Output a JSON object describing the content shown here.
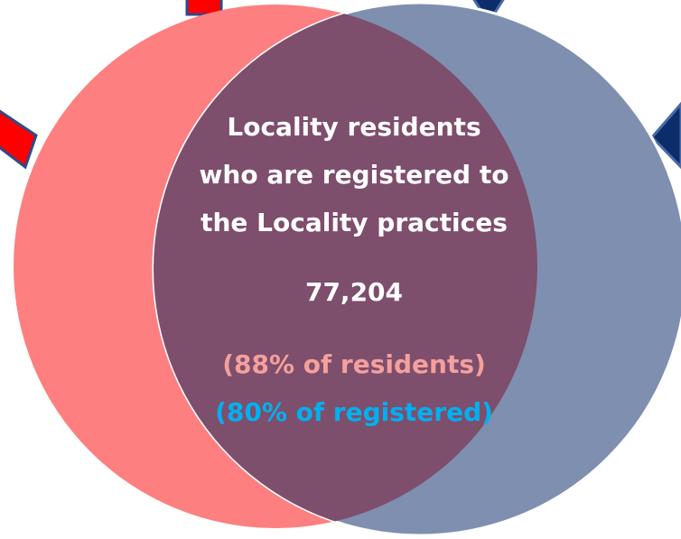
{
  "overlap": {
    "label_lines": [
      "Locality residents",
      "who are registered to",
      "the Locality practices"
    ],
    "count": "77,204",
    "share_of_residents": "(88% of residents)",
    "share_of_registered": "(80% of registered)"
  }
}
